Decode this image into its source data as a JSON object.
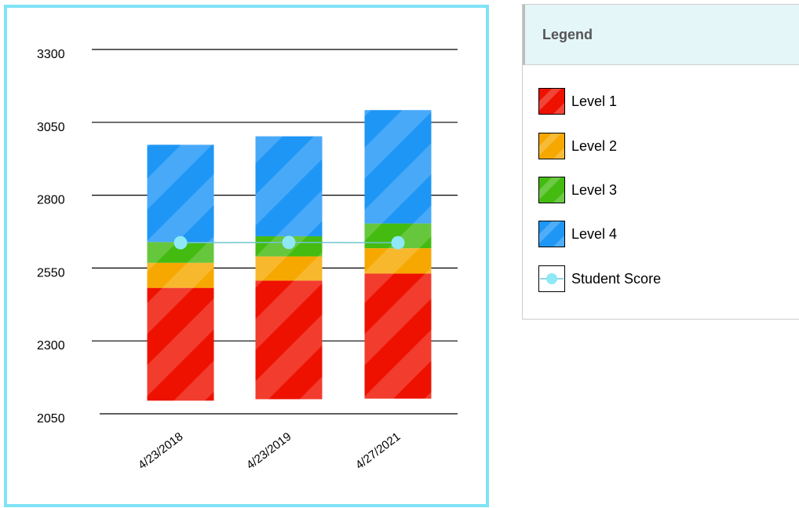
{
  "colors": {
    "level1": "#ee1100",
    "level2": "#f7a800",
    "level3": "#44bb11",
    "level4": "#1e96f6",
    "score_line": "#6fc5cf",
    "score_point": "#8ee8f6",
    "panel_border": "#7fe3f5"
  },
  "chart_data": {
    "type": "bar",
    "stacked": true,
    "categories": [
      "4/23/2018",
      "4/23/2019",
      "4/27/2021"
    ],
    "ylim": [
      2050,
      3300
    ],
    "yticks": [
      "3300",
      "3050",
      "2800",
      "2550",
      "2300",
      "2050"
    ],
    "ytick_values": [
      3300,
      3050,
      2800,
      2550,
      2300,
      2050
    ],
    "grid": true,
    "series": [
      {
        "name": "Level 1",
        "color_key": "level1",
        "bottom": [
          2095,
          2100,
          2102
        ],
        "top": [
          2482,
          2507,
          2531
        ]
      },
      {
        "name": "Level 2",
        "color_key": "level2",
        "bottom": [
          2482,
          2507,
          2531
        ],
        "top": [
          2568,
          2590,
          2618
        ]
      },
      {
        "name": "Level 3",
        "color_key": "level3",
        "bottom": [
          2568,
          2590,
          2618
        ],
        "top": [
          2639,
          2659,
          2703
        ]
      },
      {
        "name": "Level 4",
        "color_key": "level4",
        "bottom": [
          2639,
          2659,
          2703
        ],
        "top": [
          2973,
          3002,
          3092
        ]
      }
    ],
    "student_score": {
      "name": "Student Score",
      "values": [
        2637,
        2638,
        2637
      ]
    }
  },
  "legend": {
    "title": "Legend",
    "items": [
      {
        "label": "Level 1",
        "kind": "hatch",
        "color_key": "level1"
      },
      {
        "label": "Level 2",
        "kind": "hatch",
        "color_key": "level2"
      },
      {
        "label": "Level 3",
        "kind": "hatch",
        "color_key": "level3"
      },
      {
        "label": "Level 4",
        "kind": "hatch",
        "color_key": "level4"
      },
      {
        "label": "Student Score",
        "kind": "line-point",
        "color_key": "score_point"
      }
    ]
  }
}
